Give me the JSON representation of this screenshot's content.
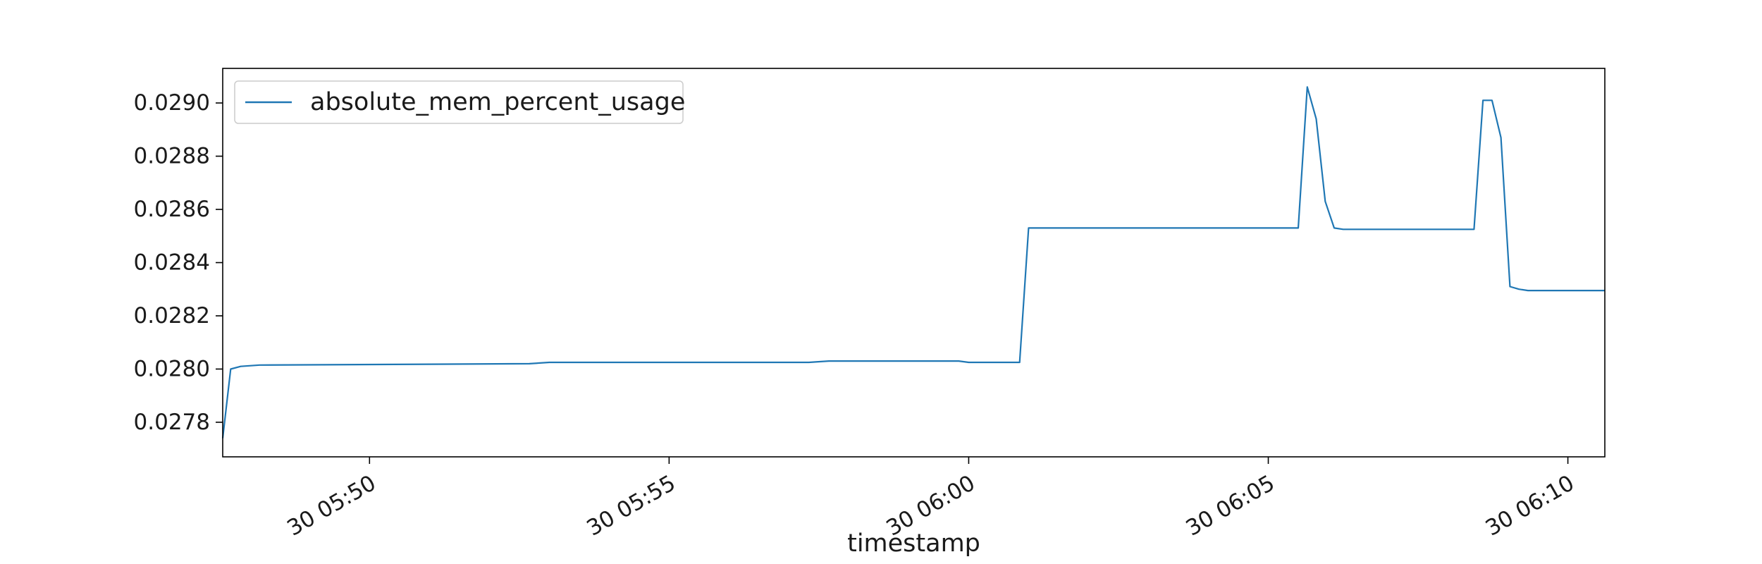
{
  "chart_data": {
    "type": "line",
    "title": "",
    "xlabel": "timestamp",
    "ylabel": "",
    "x_ticks": [
      {
        "x": "05:50",
        "label": "30 05:50"
      },
      {
        "x": "05:55",
        "label": "30 05:55"
      },
      {
        "x": "06:00",
        "label": "30 06:00"
      },
      {
        "x": "06:05",
        "label": "30 06:05"
      },
      {
        "x": "06:10",
        "label": "30 06:10"
      }
    ],
    "y_ticks": [
      {
        "value": 0.0278,
        "label": "0.0278"
      },
      {
        "value": 0.028,
        "label": "0.0280"
      },
      {
        "value": 0.0282,
        "label": "0.0282"
      },
      {
        "value": 0.0284,
        "label": "0.0284"
      },
      {
        "value": 0.0286,
        "label": "0.0286"
      },
      {
        "value": 0.0288,
        "label": "0.0288"
      },
      {
        "value": 0.029,
        "label": "0.0290"
      }
    ],
    "xlim": [
      "05:47:33",
      "06:10:37"
    ],
    "ylim": [
      0.02767,
      0.02913
    ],
    "grid": false,
    "legend": "upper-left",
    "series": [
      {
        "name": "absolute_mem_percent_usage",
        "color": "#1f77b4",
        "points": [
          [
            "05:47:33",
            0.02774
          ],
          [
            "05:47:41",
            0.028
          ],
          [
            "05:47:51",
            0.02801
          ],
          [
            "05:48:10",
            0.028015
          ],
          [
            "05:52:40",
            0.02802
          ],
          [
            "05:53:00",
            0.028025
          ],
          [
            "05:57:20",
            0.028025
          ],
          [
            "05:57:40",
            0.02803
          ],
          [
            "05:59:50",
            0.02803
          ],
          [
            "06:00:00",
            0.028025
          ],
          [
            "06:00:51",
            0.028025
          ],
          [
            "06:01:00",
            0.02853
          ],
          [
            "06:02:00",
            0.02853
          ],
          [
            "06:03:00",
            0.02853
          ],
          [
            "06:05:30",
            0.02853
          ],
          [
            "06:05:39",
            0.02906
          ],
          [
            "06:05:48",
            0.02894
          ],
          [
            "06:05:57",
            0.02863
          ],
          [
            "06:06:06",
            0.02853
          ],
          [
            "06:06:15",
            0.028525
          ],
          [
            "06:08:26",
            0.028525
          ],
          [
            "06:08:35",
            0.02901
          ],
          [
            "06:08:44",
            0.02901
          ],
          [
            "06:08:53",
            0.02887
          ],
          [
            "06:09:02",
            0.02831
          ],
          [
            "06:09:11",
            0.0283
          ],
          [
            "06:09:20",
            0.028295
          ],
          [
            "06:10:10",
            0.028295
          ],
          [
            "06:10:37",
            0.028295
          ]
        ]
      }
    ]
  }
}
